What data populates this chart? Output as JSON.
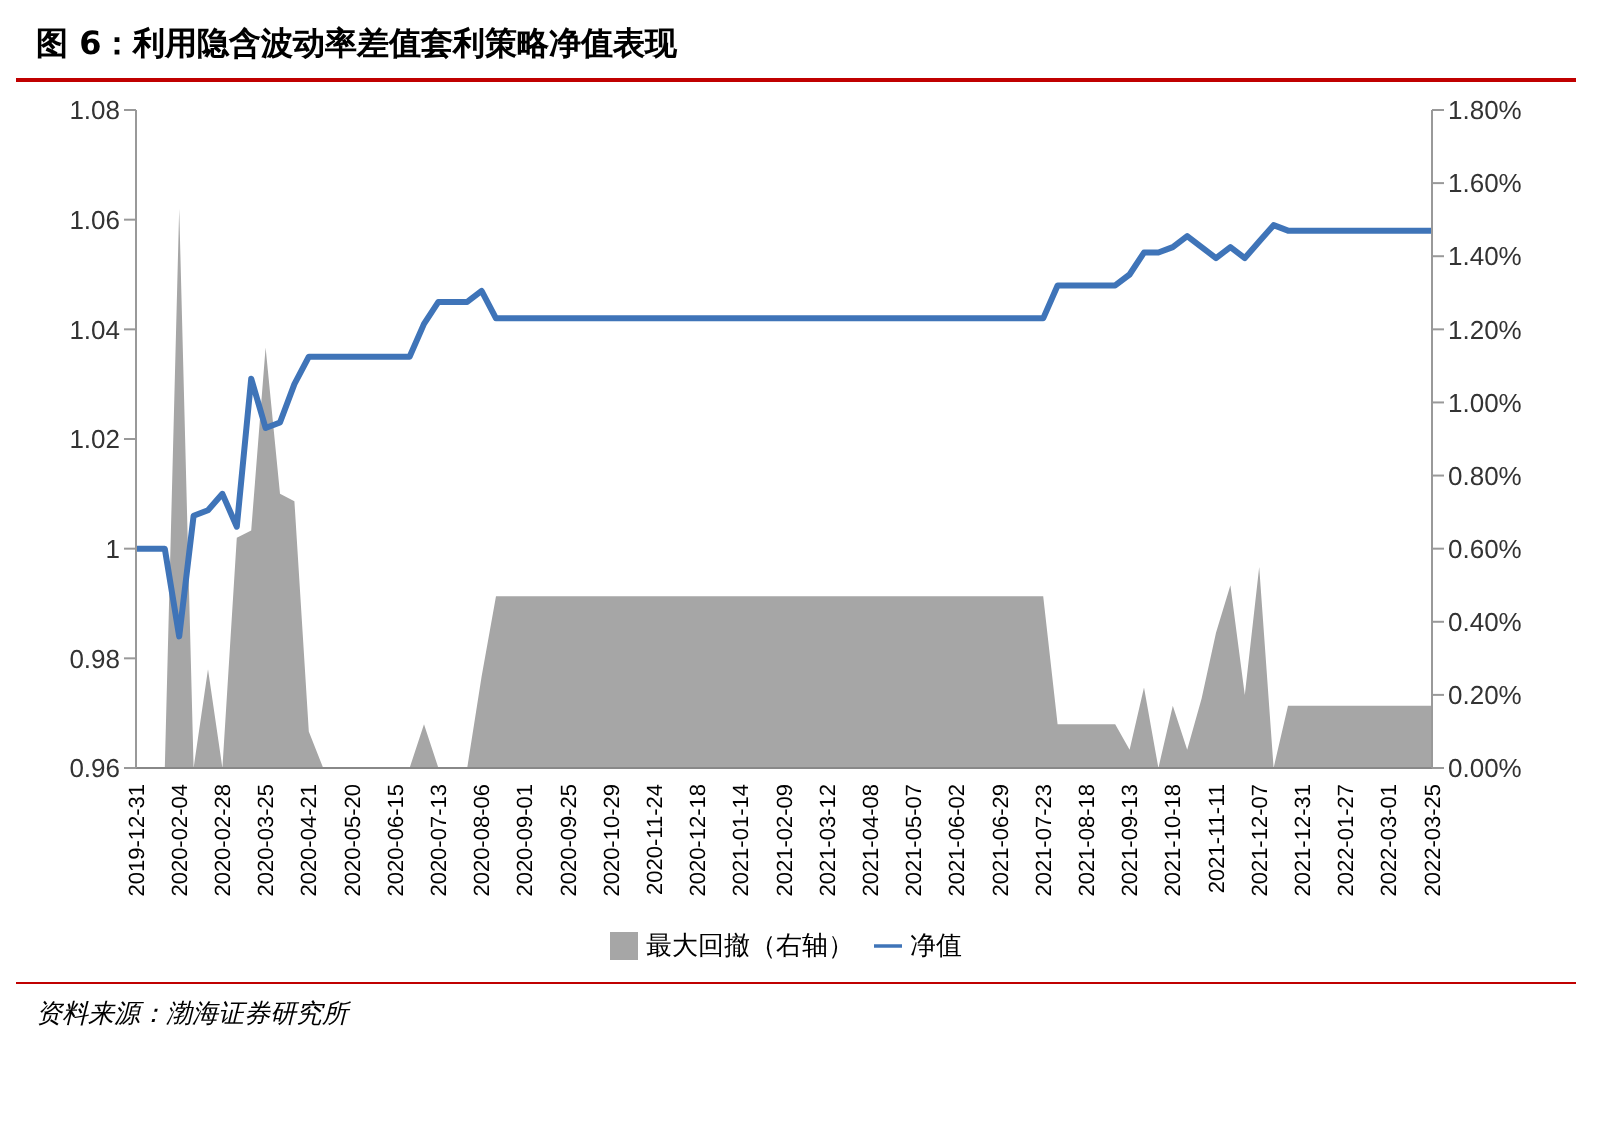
{
  "chart_data": {
    "type": "line",
    "title": "图 6：利用隐含波动率差值套利策略净值表现",
    "annotations": [
      "资料来源：渤海证券研究所"
    ],
    "categories": [
      "2019-12-31",
      null,
      null,
      "2020-02-04",
      null,
      null,
      "2020-02-28",
      null,
      null,
      "2020-03-25",
      null,
      null,
      "2020-04-21",
      null,
      null,
      "2020-05-20",
      null,
      null,
      "2020-06-15",
      null,
      null,
      "2020-07-13",
      null,
      null,
      "2020-08-06",
      null,
      null,
      "2020-09-01",
      null,
      null,
      "2020-09-25",
      null,
      null,
      "2020-10-29",
      null,
      null,
      "2020-11-24",
      null,
      null,
      "2020-12-18",
      null,
      null,
      "2021-01-14",
      null,
      null,
      "2021-02-09",
      null,
      null,
      "2021-03-12",
      null,
      null,
      "2021-04-08",
      null,
      null,
      "2021-05-07",
      null,
      null,
      "2021-06-02",
      null,
      null,
      "2021-06-29",
      null,
      null,
      "2021-07-23",
      null,
      null,
      "2021-08-18",
      null,
      null,
      "2021-09-13",
      null,
      null,
      "2021-10-18",
      null,
      null,
      "2021-11-11",
      null,
      null,
      "2021-12-07",
      null,
      null,
      "2021-12-31",
      null,
      null,
      "2022-01-27",
      null,
      null,
      "2022-03-01",
      null,
      null,
      "2022-03-25"
    ],
    "series": [
      {
        "name": "最大回撤（右轴）",
        "type": "area",
        "axis": "y2",
        "color": "#a6a6a6",
        "values": [
          0,
          0,
          0,
          1.53,
          0,
          0.27,
          0,
          0.63,
          0.65,
          1.15,
          0.75,
          0.73,
          0.1,
          0,
          0,
          0,
          0,
          0,
          0,
          0,
          0.12,
          0,
          0,
          0,
          0.25,
          0.47,
          0.47,
          0.47,
          0.47,
          0.47,
          0.47,
          0.47,
          0.47,
          0.47,
          0.47,
          0.47,
          0.47,
          0.47,
          0.47,
          0.47,
          0.47,
          0.47,
          0.47,
          0.47,
          0.47,
          0.47,
          0.47,
          0.47,
          0.47,
          0.47,
          0.47,
          0.47,
          0.47,
          0.47,
          0.47,
          0.47,
          0.47,
          0.47,
          0.47,
          0.47,
          0.47,
          0.47,
          0.47,
          0.47,
          0.12,
          0.12,
          0.12,
          0.12,
          0.12,
          0.05,
          0.22,
          0,
          0.17,
          0.05,
          0.19,
          0.37,
          0.5,
          0.2,
          0.55,
          0,
          0.17,
          0.17,
          0.17,
          0.17,
          0.17,
          0.17,
          0.17,
          0.17,
          0.17,
          0.17,
          0.17
        ]
      },
      {
        "name": "净值",
        "color": "#3f74b8",
        "values": [
          1,
          1,
          1,
          0.984,
          1.006,
          1.007,
          1.01,
          1.004,
          1.031,
          1.022,
          1.023,
          1.03,
          1.035,
          1.035,
          1.035,
          1.035,
          1.035,
          1.035,
          1.035,
          1.035,
          1.041,
          1.045,
          1.045,
          1.045,
          1.047,
          1.042,
          1.042,
          1.042,
          1.042,
          1.042,
          1.042,
          1.042,
          1.042,
          1.042,
          1.042,
          1.042,
          1.042,
          1.042,
          1.042,
          1.042,
          1.042,
          1.042,
          1.042,
          1.042,
          1.042,
          1.042,
          1.042,
          1.042,
          1.042,
          1.042,
          1.042,
          1.042,
          1.042,
          1.042,
          1.042,
          1.042,
          1.042,
          1.042,
          1.042,
          1.042,
          1.042,
          1.042,
          1.042,
          1.042,
          1.048,
          1.048,
          1.048,
          1.048,
          1.048,
          1.05,
          1.054,
          1.054,
          1.055,
          1.057,
          1.055,
          1.053,
          1.055,
          1.053,
          1.056,
          1.059,
          1.058,
          1.058,
          1.058,
          1.058,
          1.058,
          1.058,
          1.058,
          1.058,
          1.058,
          1.058,
          1.058
        ]
      }
    ],
    "ylim": [
      0.96,
      1.08
    ],
    "yticks": [
      0.96,
      0.98,
      1,
      1.02,
      1.04,
      1.06,
      1.08
    ],
    "y2lim": [
      0,
      1.8
    ],
    "y2ticks": [
      {
        "value": 0,
        "label": "0.00%"
      },
      {
        "value": 0.2,
        "label": "0.20%"
      },
      {
        "value": 0.4,
        "label": "0.40%"
      },
      {
        "value": 0.6,
        "label": "0.60%"
      },
      {
        "value": 0.8,
        "label": "0.80%"
      },
      {
        "value": 1,
        "label": "1.00%"
      },
      {
        "value": 1.2,
        "label": "1.20%"
      },
      {
        "value": 1.4,
        "label": "1.40%"
      },
      {
        "value": 1.6,
        "label": "1.60%"
      },
      {
        "value": 1.8,
        "label": "1.80%"
      }
    ],
    "grid": false,
    "legend": "bottom",
    "marker": "none",
    "line_style": "solid"
  }
}
